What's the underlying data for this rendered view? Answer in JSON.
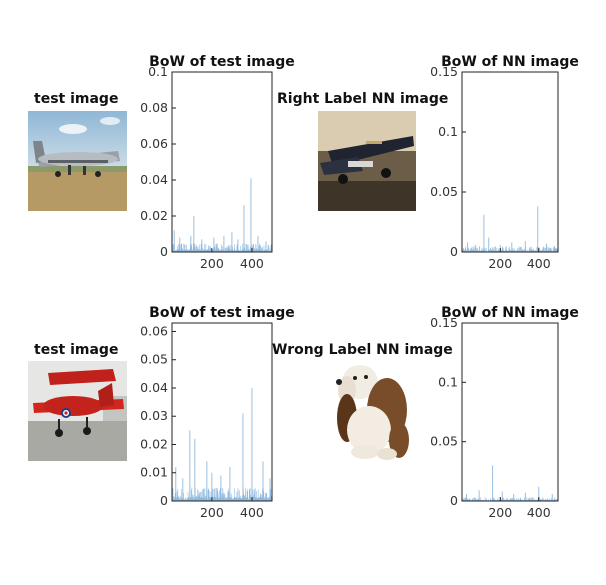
{
  "rows": [
    {
      "query_caption": "test image",
      "query_image": "red-airplane-photo",
      "nn_caption": "Right Label NN image",
      "nn_image": "dark-airplane-photo"
    }
  ],
  "row_captions": [
    {
      "query": "test image",
      "nn": "Right Label NN image"
    },
    {
      "query": "test image",
      "nn": "Wrong Label NN image"
    }
  ],
  "chart_data": [
    {
      "type": "bar",
      "title": "BoW of test image",
      "xlim": [
        1,
        500
      ],
      "ylim": [
        0,
        0.1
      ],
      "xticks": [
        200,
        400
      ],
      "yticks": [
        0,
        0.02,
        0.04,
        0.06,
        0.08,
        0.1
      ],
      "ytick_labels": [
        "0",
        "0.02",
        "0.04",
        "0.06",
        "0.08",
        "0.1"
      ],
      "bar_color": "#8fb8dc",
      "peaks": [
        [
          12,
          0.012
        ],
        [
          40,
          0.008
        ],
        [
          95,
          0.009
        ],
        [
          110,
          0.02
        ],
        [
          150,
          0.007
        ],
        [
          210,
          0.008
        ],
        [
          260,
          0.009
        ],
        [
          300,
          0.011
        ],
        [
          330,
          0.007
        ],
        [
          360,
          0.026
        ],
        [
          395,
          0.041
        ],
        [
          430,
          0.009
        ],
        [
          470,
          0.006
        ]
      ],
      "baseline": 0.003
    },
    {
      "type": "bar",
      "title": "BoW of NN image",
      "xlim": [
        1,
        500
      ],
      "ylim": [
        0,
        0.15
      ],
      "xticks": [
        200,
        400
      ],
      "yticks": [
        0,
        0.05,
        0.1,
        0.15
      ],
      "ytick_labels": [
        "0",
        "0.05",
        "0.1",
        "0.15"
      ],
      "bar_color": "#8fb8dc",
      "peaks": [
        [
          30,
          0.008
        ],
        [
          70,
          0.006
        ],
        [
          115,
          0.031
        ],
        [
          140,
          0.012
        ],
        [
          200,
          0.006
        ],
        [
          260,
          0.008
        ],
        [
          330,
          0.009
        ],
        [
          395,
          0.038
        ],
        [
          440,
          0.007
        ],
        [
          480,
          0.005
        ]
      ],
      "baseline": 0.003
    },
    {
      "type": "bar",
      "title": "BoW of test image",
      "xlim": [
        1,
        500
      ],
      "ylim": [
        0,
        0.063
      ],
      "xticks": [
        200,
        400
      ],
      "yticks": [
        0,
        0.01,
        0.02,
        0.03,
        0.04,
        0.05,
        0.06
      ],
      "ytick_labels": [
        "0",
        "0.01",
        "0.02",
        "0.03",
        "0.04",
        "0.05",
        "0.06"
      ],
      "bar_color": "#8fb8dc",
      "peaks": [
        [
          20,
          0.012
        ],
        [
          55,
          0.008
        ],
        [
          90,
          0.025
        ],
        [
          115,
          0.022
        ],
        [
          175,
          0.014
        ],
        [
          200,
          0.01
        ],
        [
          245,
          0.009
        ],
        [
          290,
          0.012
        ],
        [
          355,
          0.031
        ],
        [
          400,
          0.04
        ],
        [
          455,
          0.014
        ],
        [
          490,
          0.008
        ]
      ],
      "baseline": 0.003
    },
    {
      "type": "bar",
      "title": "BoW of NN image",
      "xlim": [
        1,
        500
      ],
      "ylim": [
        0,
        0.15
      ],
      "xticks": [
        200,
        400
      ],
      "yticks": [
        0,
        0.05,
        0.1,
        0.15
      ],
      "ytick_labels": [
        "0",
        "0.05",
        "0.1",
        "0.15"
      ],
      "bar_color": "#8fb8dc",
      "peaks": [
        [
          25,
          0.006
        ],
        [
          90,
          0.009
        ],
        [
          160,
          0.03
        ],
        [
          210,
          0.008
        ],
        [
          270,
          0.006
        ],
        [
          330,
          0.007
        ],
        [
          400,
          0.012
        ],
        [
          470,
          0.006
        ]
      ],
      "baseline": 0.002
    }
  ]
}
